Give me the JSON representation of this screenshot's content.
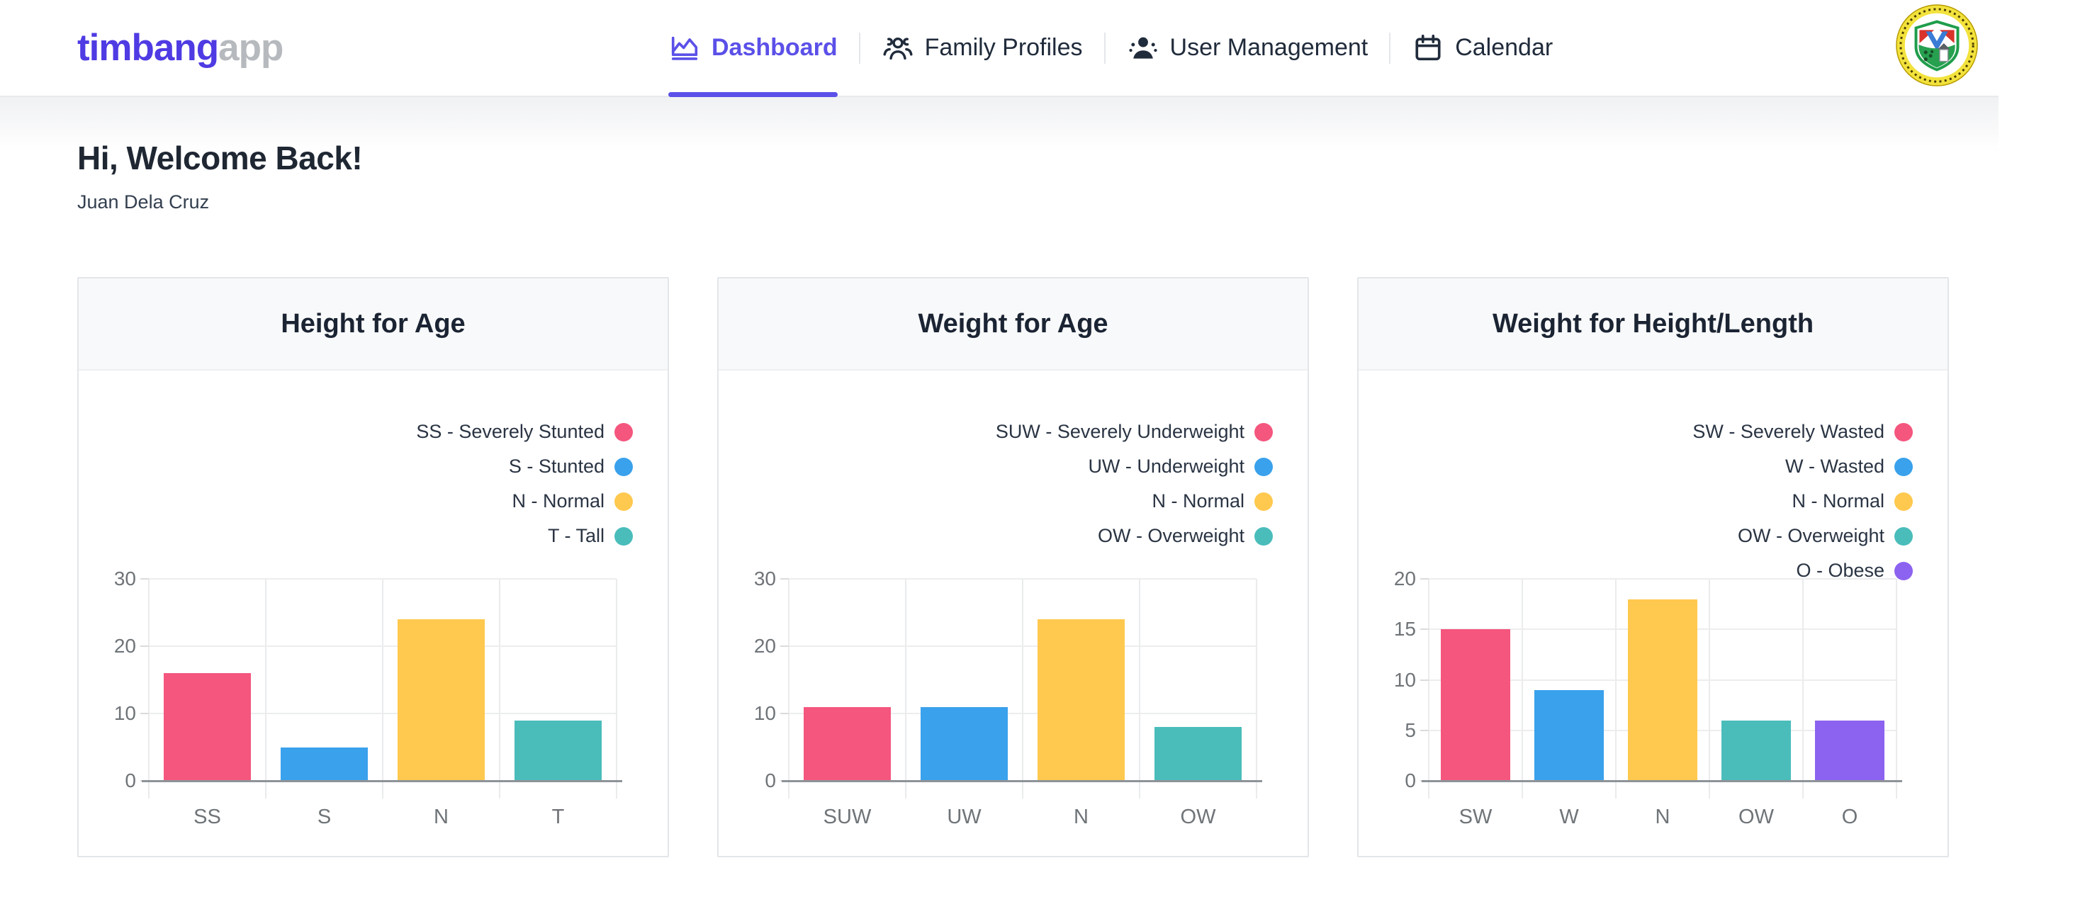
{
  "brand": {
    "primary": "timbang",
    "secondary": "app"
  },
  "nav": {
    "items": [
      {
        "label": "Dashboard",
        "icon": "dashboard-icon",
        "active": true
      },
      {
        "label": "Family Profiles",
        "icon": "family-profiles-icon",
        "active": false
      },
      {
        "label": "User Management",
        "icon": "user-management-icon",
        "active": false
      },
      {
        "label": "Calendar",
        "icon": "calendar-icon",
        "active": false
      }
    ]
  },
  "welcome": {
    "title": "Hi, Welcome Back!",
    "subtitle": "Juan Dela Cruz"
  },
  "colors": {
    "accent": "#5B50E8",
    "brand_primary": "#4F3BE3",
    "brand_secondary": "#B6B9BD",
    "pink": "#F4567E",
    "blue": "#3AA1EC",
    "yellow": "#FFC94F",
    "teal": "#4ABDBB",
    "purple": "#8C62F0"
  },
  "chart_data": [
    {
      "type": "bar",
      "title": "Height for Age",
      "categories": [
        "SS",
        "S",
        "N",
        "T"
      ],
      "values": [
        16,
        5,
        24,
        9
      ],
      "bar_colors": [
        "#F4567E",
        "#3AA1EC",
        "#FFC94F",
        "#4ABDBB"
      ],
      "legend": [
        {
          "label": "SS - Severely Stunted",
          "color": "#F4567E"
        },
        {
          "label": "S - Stunted",
          "color": "#3AA1EC"
        },
        {
          "label": "N - Normal",
          "color": "#FFC94F"
        },
        {
          "label": "T - Tall",
          "color": "#4ABDBB"
        }
      ],
      "ylim": [
        0,
        30
      ],
      "yticks": [
        0,
        10,
        20,
        30
      ],
      "grid": true,
      "legend_position": "top-right"
    },
    {
      "type": "bar",
      "title": "Weight for Age",
      "categories": [
        "SUW",
        "UW",
        "N",
        "OW"
      ],
      "values": [
        11,
        11,
        24,
        8
      ],
      "bar_colors": [
        "#F4567E",
        "#3AA1EC",
        "#FFC94F",
        "#4ABDBB"
      ],
      "legend": [
        {
          "label": "SUW - Severely Underweight",
          "color": "#F4567E"
        },
        {
          "label": "UW - Underweight",
          "color": "#3AA1EC"
        },
        {
          "label": "N - Normal",
          "color": "#FFC94F"
        },
        {
          "label": "OW - Overweight",
          "color": "#4ABDBB"
        }
      ],
      "ylim": [
        0,
        30
      ],
      "yticks": [
        0,
        10,
        20,
        30
      ],
      "grid": true,
      "legend_position": "top-right"
    },
    {
      "type": "bar",
      "title": "Weight for Height/Length",
      "categories": [
        "SW",
        "W",
        "N",
        "OW",
        "O"
      ],
      "values": [
        15,
        9,
        18,
        6,
        6
      ],
      "bar_colors": [
        "#F4567E",
        "#3AA1EC",
        "#FFC94F",
        "#4ABDBB",
        "#8C62F0"
      ],
      "legend": [
        {
          "label": "SW - Severely Wasted",
          "color": "#F4567E"
        },
        {
          "label": "W - Wasted",
          "color": "#3AA1EC"
        },
        {
          "label": "N - Normal",
          "color": "#FFC94F"
        },
        {
          "label": "OW - Overweight",
          "color": "#4ABDBB"
        },
        {
          "label": "O - Obese",
          "color": "#8C62F0"
        }
      ],
      "ylim": [
        0,
        20
      ],
      "yticks": [
        0,
        5,
        10,
        15,
        20
      ],
      "grid": true,
      "legend_position": "top-right"
    }
  ]
}
